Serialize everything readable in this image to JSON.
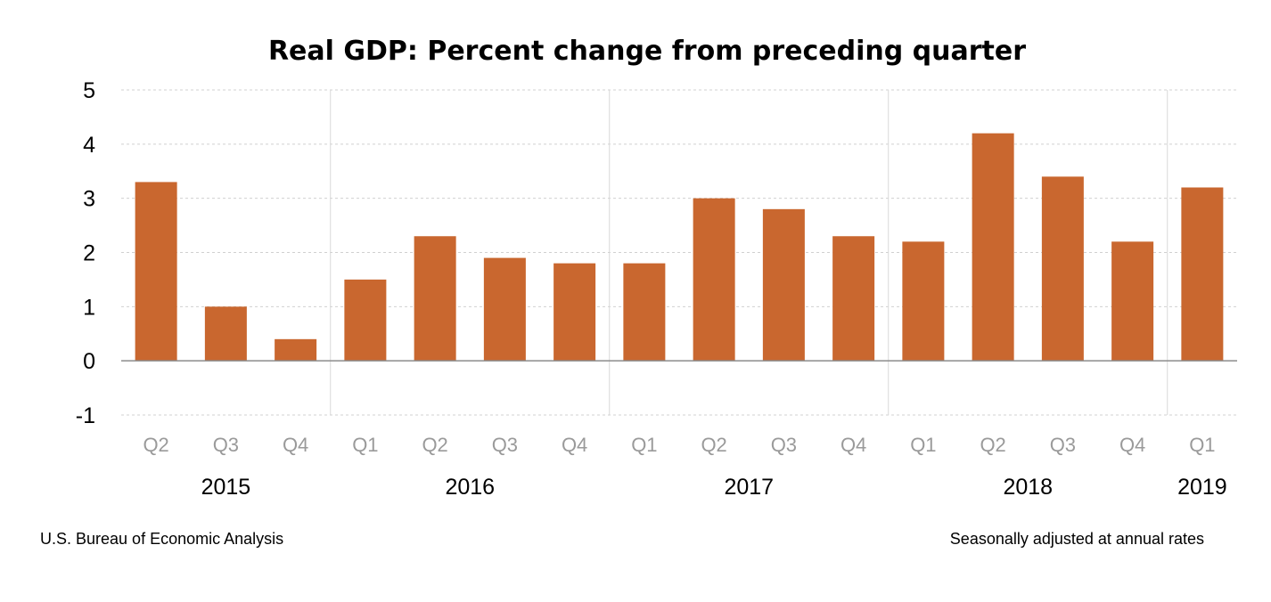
{
  "chart_data": {
    "type": "bar",
    "title": "Real GDP:  Percent change from preceding quarter",
    "categories": [
      "Q2",
      "Q3",
      "Q4",
      "Q1",
      "Q2",
      "Q3",
      "Q4",
      "Q1",
      "Q2",
      "Q3",
      "Q4",
      "Q1",
      "Q2",
      "Q3",
      "Q4",
      "Q1"
    ],
    "values": [
      3.3,
      1.0,
      0.4,
      1.5,
      2.3,
      1.9,
      1.8,
      1.8,
      3.0,
      2.8,
      2.3,
      2.2,
      4.2,
      3.4,
      2.2,
      3.2
    ],
    "years": [
      {
        "label": "2015",
        "start": 0,
        "count": 3
      },
      {
        "label": "2016",
        "start": 3,
        "count": 4
      },
      {
        "label": "2017",
        "start": 7,
        "count": 4
      },
      {
        "label": "2018",
        "start": 11,
        "count": 4
      },
      {
        "label": "2019",
        "start": 15,
        "count": 1
      }
    ],
    "yticks": [
      -1,
      0,
      1,
      2,
      3,
      4,
      5
    ],
    "ylim": [
      -1,
      5
    ],
    "xlabel": "",
    "ylabel": "",
    "grid": true,
    "bar_color": "#c9672f"
  },
  "source_note": "U.S. Bureau of Economic Analysis",
  "rate_note": "Seasonally adjusted at annual rates"
}
